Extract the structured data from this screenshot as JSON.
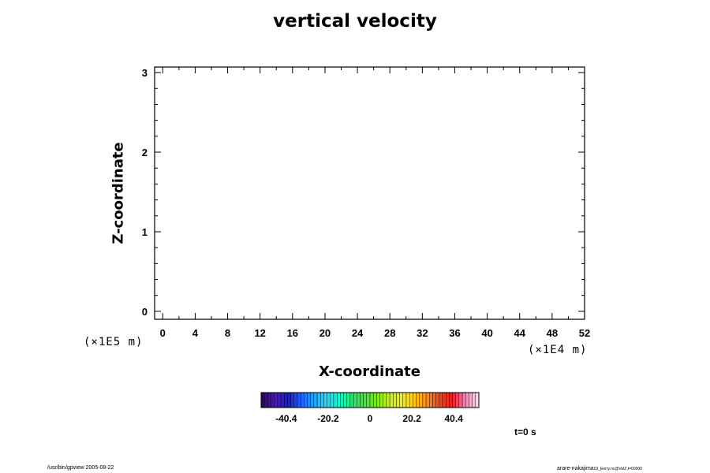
{
  "chart_data": {
    "type": "heatmap",
    "title": "vertical velocity",
    "xlabel": "X-coordinate",
    "ylabel": "Z-coordinate",
    "x_scale_note": "(×1E4 m)",
    "y_scale_note": "(×1E5 m)",
    "xlim": [
      -1,
      52
    ],
    "ylim": [
      -0.1,
      3.07
    ],
    "x_ticks": [
      "0",
      "4",
      "8",
      "12",
      "16",
      "20",
      "24",
      "28",
      "32",
      "36",
      "40",
      "44",
      "48",
      "52"
    ],
    "x_tick_values": [
      0,
      4,
      8,
      12,
      16,
      20,
      24,
      28,
      32,
      36,
      40,
      44,
      48,
      52
    ],
    "y_ticks": [
      "0",
      "1",
      "2",
      "3"
    ],
    "y_tick_values": [
      0,
      1,
      2,
      3
    ],
    "values": [],
    "colorbar": {
      "tick_labels": [
        "-40.4",
        "-20.2",
        "0",
        "20.2",
        "40.4"
      ],
      "tick_values": [
        -40.4,
        -20.2,
        0,
        20.2,
        40.4
      ],
      "range": [
        -52.5,
        52.5
      ],
      "colors": [
        "#2a0b5c",
        "#4b1fa3",
        "#1a1ad6",
        "#1f5fff",
        "#1f9fff",
        "#1fdcff",
        "#1ff0c8",
        "#28e678",
        "#3ee63e",
        "#7be61e",
        "#c0f01e",
        "#f0f01e",
        "#ffc81e",
        "#ff8c1e",
        "#f04a1e",
        "#e61e1e",
        "#ff7ab4",
        "#ffd2e6"
      ]
    },
    "time_label": "t=0 s"
  },
  "footer": {
    "left": "/usr/bin/gpview 2005-08-22",
    "right_main": "arare-nakajima",
    "right_small": "03_Eerry.nc@VelZ,t=00000"
  }
}
